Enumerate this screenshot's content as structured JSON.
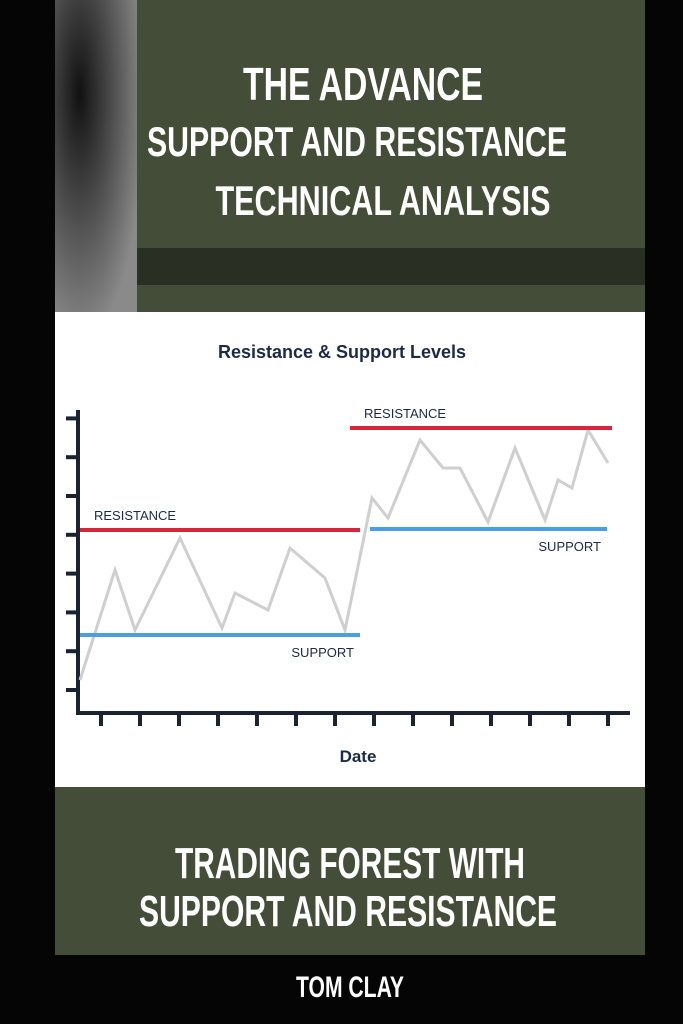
{
  "cover": {
    "title": [
      "THE ADVANCE",
      "SUPPORT AND RESISTANCE",
      "TECHNICAL ANALYSIS"
    ],
    "subtitle": [
      "TRADING FOREST WITH",
      "SUPPORT AND RESISTANCE"
    ],
    "author": "TOM CLAY"
  },
  "chart_data": {
    "type": "line",
    "title": "Resistance & Support Levels",
    "xlabel": "Date",
    "xlim": [
      0,
      550
    ],
    "ylim": [
      0,
      310
    ],
    "color": "#cfcfcf",
    "x": [
      0,
      35,
      55,
      100,
      142,
      155,
      188,
      210,
      245,
      265,
      292,
      308,
      340,
      363,
      380,
      408,
      435,
      465,
      478,
      492,
      508,
      528
    ],
    "values": [
      33,
      143,
      83,
      175,
      85,
      120,
      103,
      165,
      135,
      83,
      215,
      195,
      273,
      245,
      245,
      191,
      265,
      193,
      233,
      225,
      283,
      250
    ],
    "levels": [
      {
        "label": "RESISTANCE",
        "value": 183,
        "from": 0,
        "to": 280,
        "color": "#d9253a"
      },
      {
        "label": "SUPPORT",
        "value": 78,
        "from": 0,
        "to": 280,
        "color": "#4a9ee6"
      },
      {
        "label": "RESISTANCE",
        "value": 285,
        "from": 270,
        "to": 532,
        "color": "#d9253a"
      },
      {
        "label": "SUPPORT",
        "value": 184,
        "from": 290,
        "to": 527,
        "color": "#4a9ee6"
      }
    ]
  }
}
